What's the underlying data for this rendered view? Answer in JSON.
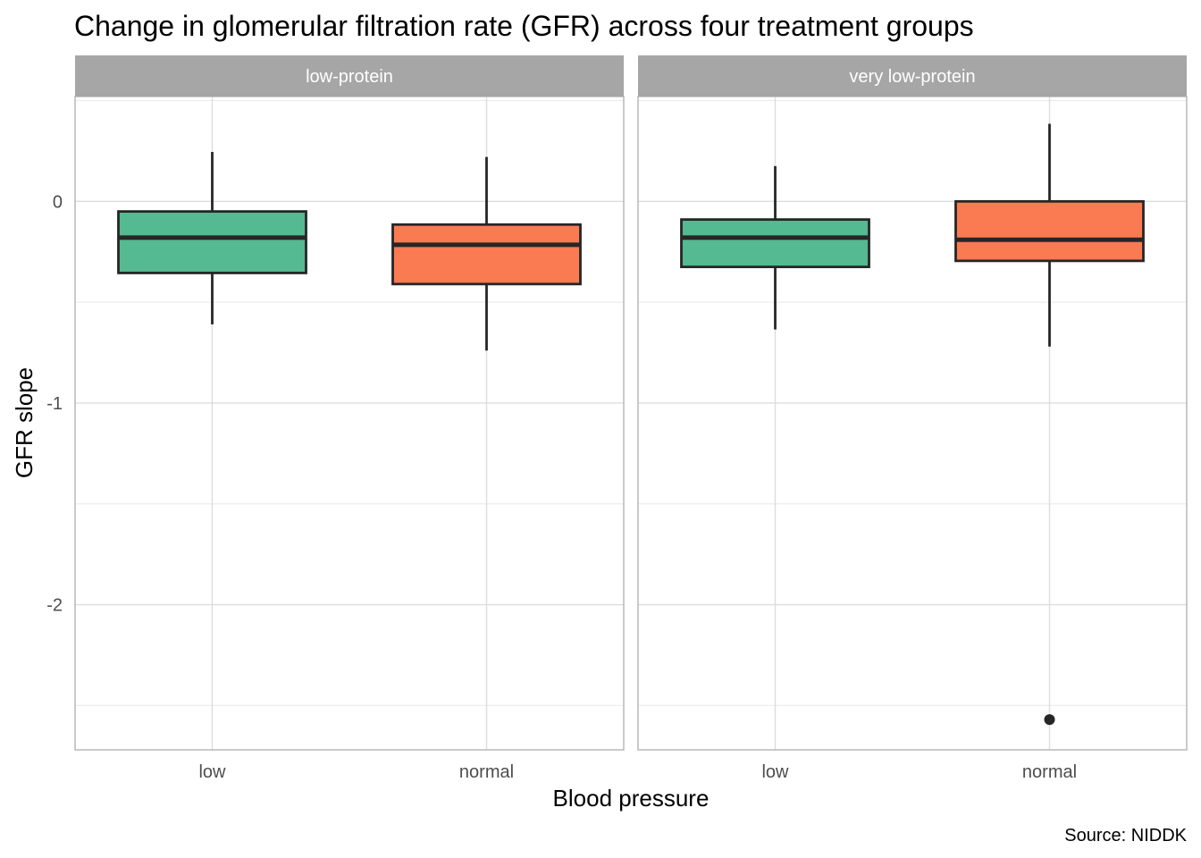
{
  "chart_data": {
    "type": "boxplot",
    "title": "Change in glomerular filtration rate (GFR) across four treatment groups",
    "xlabel": "Blood pressure",
    "ylabel": "GFR slope",
    "caption": "Source: NIDDK",
    "ylim": [
      -2.72,
      0.52
    ],
    "y_ticks": [
      {
        "value": 0,
        "label": "0"
      },
      {
        "value": -1,
        "label": "-1"
      },
      {
        "value": -2,
        "label": "-2"
      }
    ],
    "y_minor_ticks": [
      0.5,
      -0.5,
      -1.5,
      -2.5
    ],
    "categories": [
      "low",
      "normal"
    ],
    "colors": {
      "low": "#55b991",
      "normal": "#fa7a51"
    },
    "grid": true,
    "legend": "none",
    "panels": [
      {
        "facet": "low-protein",
        "boxes": [
          {
            "category": "low",
            "whisker_low": -0.61,
            "q1": -0.355,
            "median": -0.18,
            "q3": -0.05,
            "whisker_high": 0.245,
            "outliers": []
          },
          {
            "category": "normal",
            "whisker_low": -0.74,
            "q1": -0.41,
            "median": -0.215,
            "q3": -0.115,
            "whisker_high": 0.22,
            "outliers": []
          }
        ]
      },
      {
        "facet": "very low-protein",
        "boxes": [
          {
            "category": "low",
            "whisker_low": -0.635,
            "q1": -0.325,
            "median": -0.18,
            "q3": -0.09,
            "whisker_high": 0.175,
            "outliers": []
          },
          {
            "category": "normal",
            "whisker_low": -0.72,
            "q1": -0.295,
            "median": -0.19,
            "q3": 0.0,
            "whisker_high": 0.385,
            "outliers": [
              -2.57
            ]
          }
        ]
      }
    ]
  }
}
